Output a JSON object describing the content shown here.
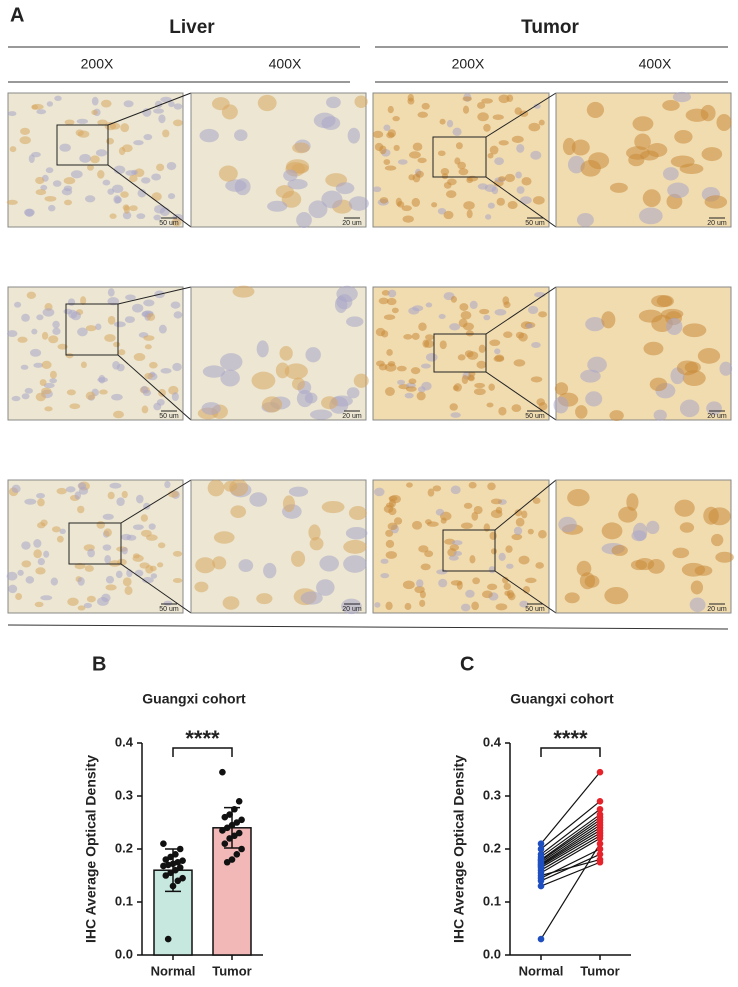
{
  "panel_a": {
    "label": "A",
    "groups": [
      "Liver",
      "Tumor"
    ],
    "magnifications": [
      "200X",
      "400X"
    ],
    "scale_bars": [
      "50 um",
      "20 um"
    ]
  },
  "chart_data": [
    {
      "type": "bar",
      "panel_label": "B",
      "title": "Guangxi cohort",
      "y_label": "IHC Average Optical Density",
      "categories": [
        "Normal",
        "Tumor"
      ],
      "values": [
        0.16,
        0.24
      ],
      "errors": [
        0.04,
        0.038
      ],
      "colors": [
        "#c6e8df",
        "#f2b8b8"
      ],
      "point_color": "#111111",
      "points": [
        [
          0.21,
          0.2,
          0.19,
          0.185,
          0.18,
          0.178,
          0.175,
          0.172,
          0.17,
          0.168,
          0.165,
          0.16,
          0.155,
          0.15,
          0.145,
          0.14,
          0.13,
          0.03
        ],
        [
          0.345,
          0.29,
          0.275,
          0.265,
          0.26,
          0.255,
          0.25,
          0.245,
          0.24,
          0.235,
          0.23,
          0.225,
          0.22,
          0.21,
          0.2,
          0.19,
          0.18,
          0.175
        ]
      ],
      "annotation": "****",
      "ylim": [
        0,
        0.4
      ],
      "yticks": [
        {
          "value": 0,
          "label": "0.0"
        },
        0.1,
        0.2,
        0.3,
        0.4
      ]
    },
    {
      "type": "paired",
      "panel_label": "C",
      "title": "Guangxi  cohort",
      "y_label": "IHC Average Optical Density",
      "categories": [
        "Normal",
        "Tumor"
      ],
      "points": [
        {
          "color": "#1f4fbf",
          "values": [
            0.21,
            0.2,
            0.19,
            0.185,
            0.18,
            0.178,
            0.175,
            0.172,
            0.17,
            0.168,
            0.165,
            0.16,
            0.155,
            0.15,
            0.145,
            0.14,
            0.13,
            0.03
          ]
        },
        {
          "color": "#e8222a",
          "values": [
            0.345,
            0.29,
            0.275,
            0.265,
            0.26,
            0.255,
            0.25,
            0.245,
            0.24,
            0.235,
            0.23,
            0.225,
            0.22,
            0.18,
            0.2,
            0.19,
            0.175,
            0.21
          ]
        }
      ],
      "annotation": "****",
      "ylim": [
        0,
        0.4
      ],
      "yticks": [
        {
          "value": 0,
          "label": "0.0"
        },
        0.1,
        0.2,
        0.3,
        0.4
      ]
    }
  ]
}
